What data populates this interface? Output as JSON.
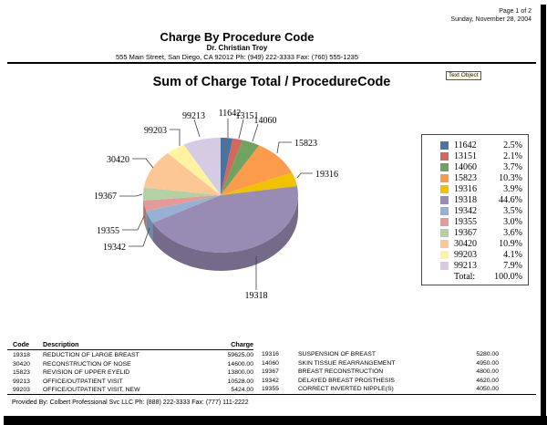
{
  "page": {
    "page_number": "Page 1 of 2",
    "date": "Sunday, November 28, 2004",
    "title": "Charge By Procedure Code",
    "doctor": "Dr. Christian Troy",
    "address": "555 Main Street, San Diego, CA 92012 Ph: (949) 222-3333 Fax: (760) 555-1235",
    "text_object_label": "Text Object",
    "footer": "Provided By: Colbert Professional Svc LLC Ph: (888) 222-3333 Fax: (777) 111-2222"
  },
  "chart_data": {
    "type": "pie",
    "style": "3d",
    "title": "Sum of Charge Total / ProcedureCode",
    "legend_position": "right",
    "slices": [
      {
        "code": "11642",
        "percent": 2.5,
        "color": "#4C72A0"
      },
      {
        "code": "13151",
        "percent": 2.1,
        "color": "#D2685E"
      },
      {
        "code": "14060",
        "percent": 3.7,
        "color": "#6FA361"
      },
      {
        "code": "15823",
        "percent": 10.3,
        "color": "#FB9B4B"
      },
      {
        "code": "19316",
        "percent": 3.9,
        "color": "#F2C200"
      },
      {
        "code": "19318",
        "percent": 44.6,
        "color": "#988CB4"
      },
      {
        "code": "19342",
        "percent": 3.5,
        "color": "#95B1D5"
      },
      {
        "code": "19355",
        "percent": 3.0,
        "color": "#E49A96"
      },
      {
        "code": "19367",
        "percent": 3.6,
        "color": "#B2D1A5"
      },
      {
        "code": "30420",
        "percent": 10.9,
        "color": "#FCC794"
      },
      {
        "code": "99203",
        "percent": 4.1,
        "color": "#FFF3A2"
      },
      {
        "code": "99213",
        "percent": 7.9,
        "color": "#D5CBE2"
      }
    ],
    "legend": {
      "total_label": "Total:",
      "total_value": "100.0%"
    }
  },
  "table": {
    "headers": [
      "Code",
      "Description",
      "Charge"
    ],
    "left_rows": [
      [
        "19318",
        "REDUCTION OF LARGE BREAST",
        "59625.00"
      ],
      [
        "30420",
        "RECONSTRUCTION OF NOSE",
        "14600.00"
      ],
      [
        "15823",
        "REVISION OF UPPER EYELID",
        "13800.00"
      ],
      [
        "99213",
        "OFFICE/OUTPATIENT VISIT",
        "10528.00"
      ],
      [
        "99203",
        "OFFICE/OUTPATIENT VISIT, NEW",
        "5424.00"
      ]
    ],
    "right_rows": [
      [
        "19316",
        "SUSPENSION OF BREAST",
        "5280.00"
      ],
      [
        "14060",
        "SKIN TISSUE REARRANGEMENT",
        "4950.00"
      ],
      [
        "19367",
        "BREAST RECONSTRUCTION",
        "4800.00"
      ],
      [
        "19342",
        "DELAYED BREAST PROSTHESIS",
        "4620.00"
      ],
      [
        "19355",
        "CORRECT INVERTED NIPPLE(S)",
        "4050.00"
      ]
    ]
  }
}
